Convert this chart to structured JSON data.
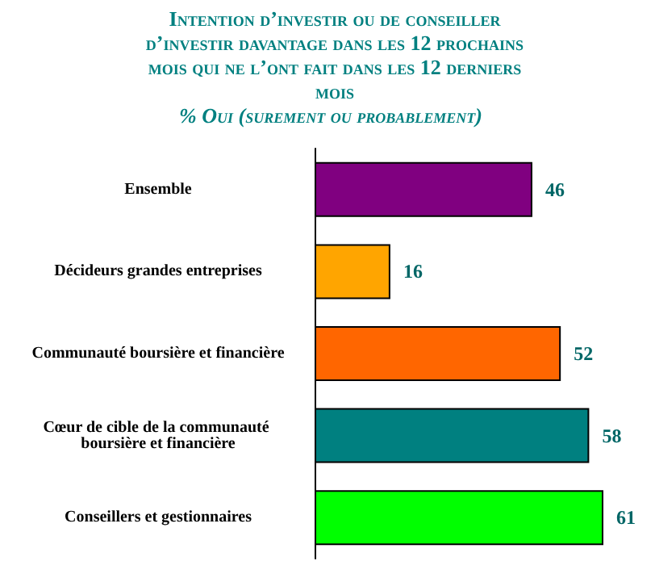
{
  "chart_data": {
    "type": "bar",
    "orientation": "horizontal",
    "title": "Intention d’investir ou de conseiller d’investir davantage dans les 12 prochains mois qui ne l’ont fait dans les 12 derniers mois",
    "subtitle": "% Oui (surement ou probablement)",
    "categories": [
      "Ensemble",
      "Décideurs grandes entreprises",
      "Communauté boursière et financière",
      "Cœur de cible de la communauté boursière et financière",
      "Conseillers et gestionnaires"
    ],
    "values": [
      46,
      16,
      52,
      58,
      61
    ],
    "colors": [
      "#800080",
      "#ffa500",
      "#ff6600",
      "#008080",
      "#00ff00"
    ],
    "data_labels": true
  }
}
